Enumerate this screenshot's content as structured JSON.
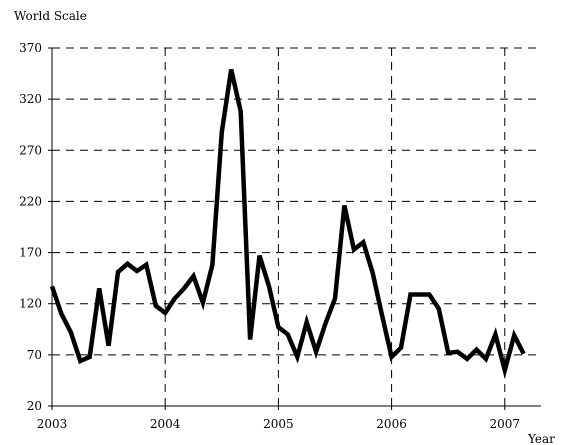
{
  "chart_data": {
    "type": "line",
    "title": "",
    "ylabel": "World Scale",
    "xlabel": "Year",
    "xlim": [
      2003,
      2007.32
    ],
    "ylim": [
      20,
      370
    ],
    "x_ticks": [
      2003,
      2004,
      2005,
      2006,
      2007
    ],
    "x_tick_labels": [
      "2003",
      "2004",
      "2005",
      "2006",
      "2007"
    ],
    "y_ticks": [
      20,
      70,
      120,
      170,
      220,
      270,
      320,
      370
    ],
    "y_tick_labels": [
      "20",
      "70",
      "120",
      "170",
      "220",
      "270",
      "320",
      "370"
    ],
    "grid": true,
    "legend": "none",
    "line_color": "#000000",
    "series": [
      {
        "x": [
          2003.0,
          2003.083,
          2003.167,
          2003.25,
          2003.333,
          2003.417,
          2003.5,
          2003.583,
          2003.667,
          2003.75,
          2003.833,
          2003.917,
          2004.0,
          2004.083,
          2004.167,
          2004.25,
          2004.333,
          2004.417,
          2004.5,
          2004.583,
          2004.667,
          2004.75,
          2004.833,
          2004.917,
          2005.0,
          2005.083,
          2005.167,
          2005.25,
          2005.333,
          2005.417,
          2005.5,
          2005.583,
          2005.667,
          2005.75,
          2005.833,
          2005.917,
          2006.0,
          2006.083,
          2006.167,
          2006.25,
          2006.333,
          2006.417,
          2006.5,
          2006.583,
          2006.667,
          2006.75,
          2006.833,
          2006.917,
          2007.0,
          2007.083,
          2007.167
        ],
        "values": [
          137,
          110,
          92,
          64,
          68,
          135,
          79,
          151,
          159,
          152,
          158,
          118,
          111,
          125,
          135,
          147,
          121,
          158,
          288,
          349,
          308,
          85,
          167,
          137,
          97,
          90,
          68,
          102,
          73,
          101,
          125,
          216,
          173,
          180,
          150,
          108,
          68,
          77,
          129,
          129,
          129,
          115,
          72,
          73,
          66,
          75,
          66,
          90,
          55,
          89,
          71
        ]
      }
    ]
  }
}
